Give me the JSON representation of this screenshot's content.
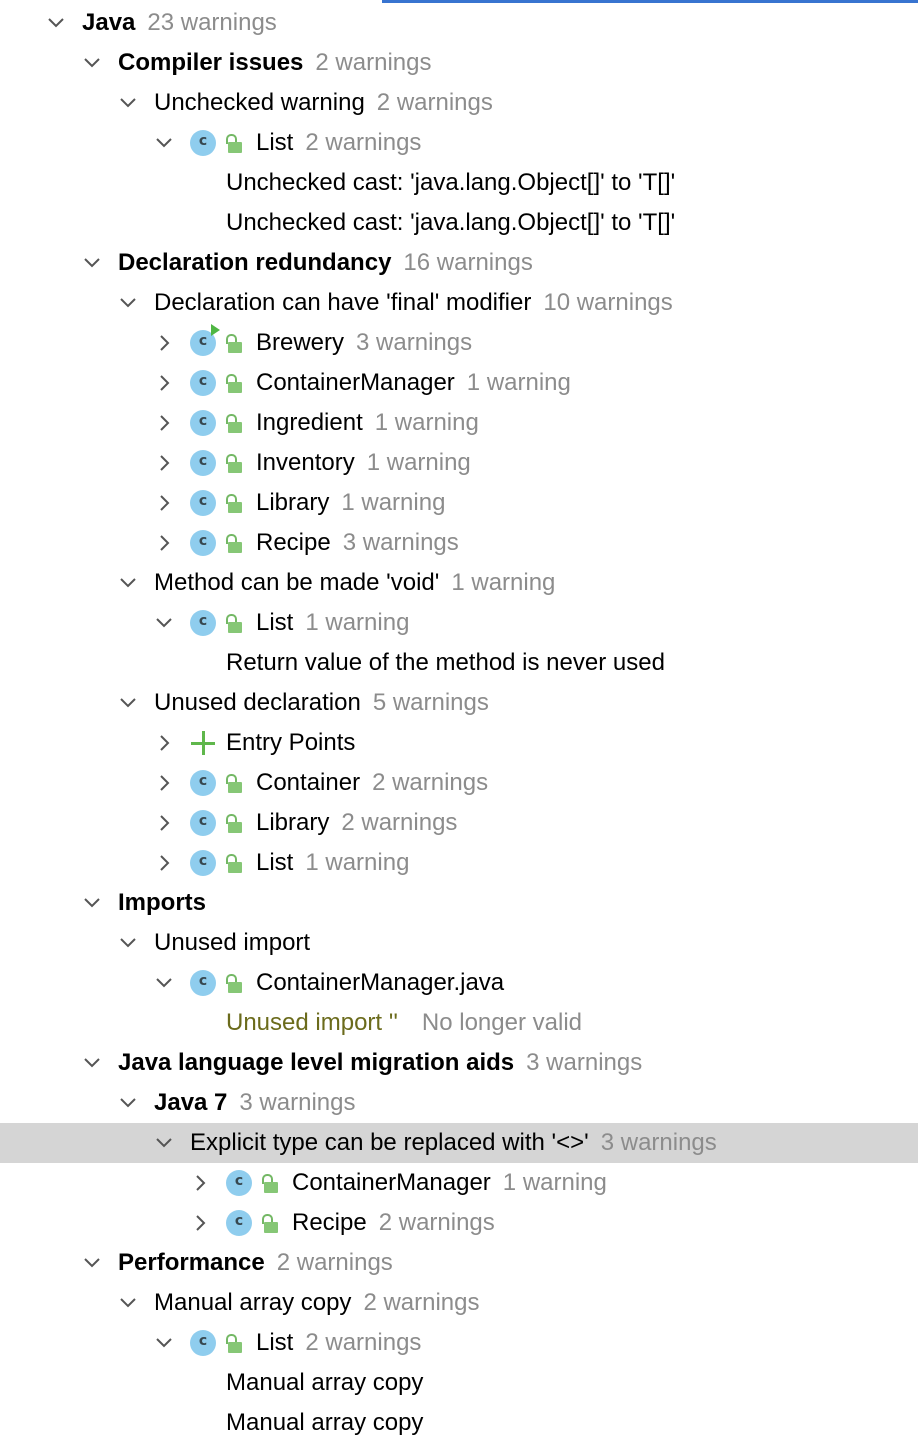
{
  "tree": {
    "java": {
      "label": "Java",
      "count": "23 warnings"
    },
    "compiler_issues": {
      "label": "Compiler issues",
      "count": "2 warnings"
    },
    "unchecked_warning": {
      "label": "Unchecked warning",
      "count": "2 warnings"
    },
    "unchecked_list": {
      "label": "List",
      "count": "2 warnings",
      "icon": "class-icon"
    },
    "unchecked_msg_1": "Unchecked cast: 'java.lang.Object[]' to 'T[]'",
    "unchecked_msg_2": "Unchecked cast: 'java.lang.Object[]' to 'T[]'",
    "decl_redundancy": {
      "label": "Declaration redundancy",
      "count": "16 warnings"
    },
    "final_modifier": {
      "label": "Declaration can have 'final' modifier",
      "count": "10 warnings"
    },
    "final_items": [
      {
        "label": "Brewery",
        "count": "3 warnings"
      },
      {
        "label": "ContainerManager",
        "count": "1 warning"
      },
      {
        "label": "Ingredient",
        "count": "1 warning"
      },
      {
        "label": "Inventory",
        "count": "1 warning"
      },
      {
        "label": "Library",
        "count": "1 warning"
      },
      {
        "label": "Recipe",
        "count": "3 warnings"
      }
    ],
    "method_void": {
      "label": "Method can be made 'void'",
      "count": "1 warning"
    },
    "void_list": {
      "label": "List",
      "count": "1 warning"
    },
    "void_msg": "Return value of the method is never used",
    "unused_decl": {
      "label": "Unused declaration",
      "count": "5 warnings"
    },
    "entry_points": {
      "label": "Entry Points"
    },
    "unused_items": [
      {
        "label": "Container",
        "count": "2 warnings"
      },
      {
        "label": "Library",
        "count": "2 warnings"
      },
      {
        "label": "List",
        "count": "1 warning"
      }
    ],
    "imports": {
      "label": "Imports"
    },
    "unused_import": {
      "label": "Unused import"
    },
    "import_file": {
      "label": "ContainerManager.java"
    },
    "import_msg": {
      "label": "Unused import ''",
      "status": "No longer valid"
    },
    "migration": {
      "label": "Java language level migration aids",
      "count": "3 warnings"
    },
    "java7": {
      "label": "Java 7",
      "count": "3 warnings"
    },
    "diamond": {
      "label": "Explicit type can be replaced with '<>'",
      "count": "3 warnings"
    },
    "diamond_items": [
      {
        "label": "ContainerManager",
        "count": "1 warning"
      },
      {
        "label": "Recipe",
        "count": "2 warnings"
      }
    ],
    "performance": {
      "label": "Performance",
      "count": "2 warnings"
    },
    "array_copy": {
      "label": "Manual array copy",
      "count": "2 warnings"
    },
    "array_list": {
      "label": "List",
      "count": "2 warnings"
    },
    "array_msg_1": "Manual array copy",
    "array_msg_2": "Manual array copy"
  },
  "colors": {
    "accent": "#3874d0",
    "selection": "#d5d5d5",
    "count": "#8c8c8c",
    "class_icon": "#8fcdee",
    "lock": "#86c776"
  }
}
